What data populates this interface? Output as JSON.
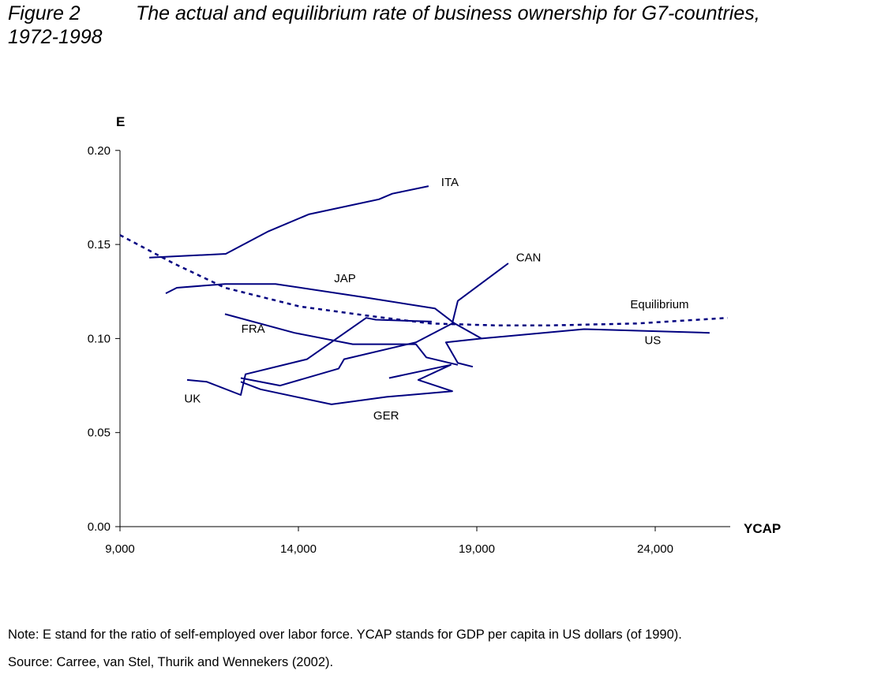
{
  "figure": {
    "label": "Figure 2",
    "title_line1": "The actual and equilibrium rate of business ownership for G7-countries,",
    "title_line2": "1972-1998"
  },
  "notes": {
    "note": "Note: E stand for the ratio of self-employed over labor force. YCAP stands for GDP per capita in US dollars (of 1990).",
    "source": "Source: Carree, van Stel, Thurik and Wennekers (2002)."
  },
  "colors": {
    "line": "#000080",
    "axis": "#000000"
  },
  "chart_data": {
    "type": "line",
    "title": "The actual and equilibrium rate of business ownership for G7-countries, 1972-1998",
    "xlabel": "YCAP",
    "ylabel": "E",
    "xlim": [
      9000,
      26500
    ],
    "ylim": [
      0.0,
      0.2
    ],
    "xticks": [
      9000,
      14000,
      19000,
      24000
    ],
    "xtick_labels": [
      "9,000",
      "14,000",
      "19,000",
      "24,000"
    ],
    "yticks": [
      0.0,
      0.05,
      0.1,
      0.15,
      0.2
    ],
    "ytick_labels": [
      "0.00",
      "0.05",
      "0.10",
      "0.15",
      "0.20"
    ],
    "grid": false,
    "series": [
      {
        "name": "ITA",
        "style": "solid",
        "label_at": [
          18000,
          0.181
        ],
        "x": [
          9820,
          11964,
          13159,
          14287,
          16256,
          16631,
          17649
        ],
        "y": [
          0.143,
          0.145,
          0.157,
          0.166,
          0.174,
          0.177,
          0.181
        ]
      },
      {
        "name": "JAP",
        "style": "solid",
        "label_at": [
          15000,
          0.13
        ],
        "x": [
          10283,
          10593,
          11942,
          13358,
          15813,
          17826,
          18379,
          19131
        ],
        "y": [
          0.124,
          0.127,
          0.129,
          0.129,
          0.122,
          0.116,
          0.108,
          0.1
        ]
      },
      {
        "name": "CAN",
        "style": "solid",
        "label_at": [
          20100,
          0.141
        ],
        "x": [
          12384,
          13490,
          15127,
          15282,
          17295,
          18312,
          18467,
          19883
        ],
        "y": [
          0.079,
          0.075,
          0.084,
          0.089,
          0.098,
          0.108,
          0.12,
          0.14
        ]
      },
      {
        "name": "US",
        "style": "solid",
        "label_at": [
          23700,
          0.097
        ],
        "x": [
          18888,
          18467,
          18135,
          19131,
          22006,
          25524
        ],
        "y": [
          0.085,
          0.087,
          0.098,
          0.1,
          0.105,
          0.103
        ]
      },
      {
        "name": "FRA",
        "style": "solid",
        "label_at": [
          12400,
          0.103
        ],
        "x": [
          11942,
          13889,
          15525,
          17295,
          17583,
          18467
        ],
        "y": [
          0.113,
          0.103,
          0.097,
          0.097,
          0.09,
          0.086
        ]
      },
      {
        "name": "GER",
        "style": "solid",
        "label_at": [
          16100,
          0.057
        ],
        "x": [
          16543,
          18268,
          17361,
          18312,
          16476,
          14928,
          12937,
          12384
        ],
        "y": [
          0.079,
          0.086,
          0.078,
          0.072,
          0.069,
          0.065,
          0.073,
          0.077
        ]
      },
      {
        "name": "UK",
        "style": "solid",
        "label_at": [
          10800,
          0.066
        ],
        "x": [
          10880,
          11433,
          12384,
          12517,
          14243,
          15901,
          16167,
          17737
        ],
        "y": [
          0.078,
          0.077,
          0.07,
          0.081,
          0.089,
          0.111,
          0.11,
          0.109
        ]
      },
      {
        "name": "Equilibrium",
        "style": "dotted",
        "label_at": [
          23300,
          0.116
        ],
        "x": [
          9000,
          10500,
          11942,
          14043,
          16000,
          17693,
          19500,
          21122,
          23500,
          26032
        ],
        "y": [
          0.155,
          0.14,
          0.127,
          0.117,
          0.112,
          0.108,
          0.107,
          0.107,
          0.108,
          0.111
        ]
      }
    ]
  }
}
